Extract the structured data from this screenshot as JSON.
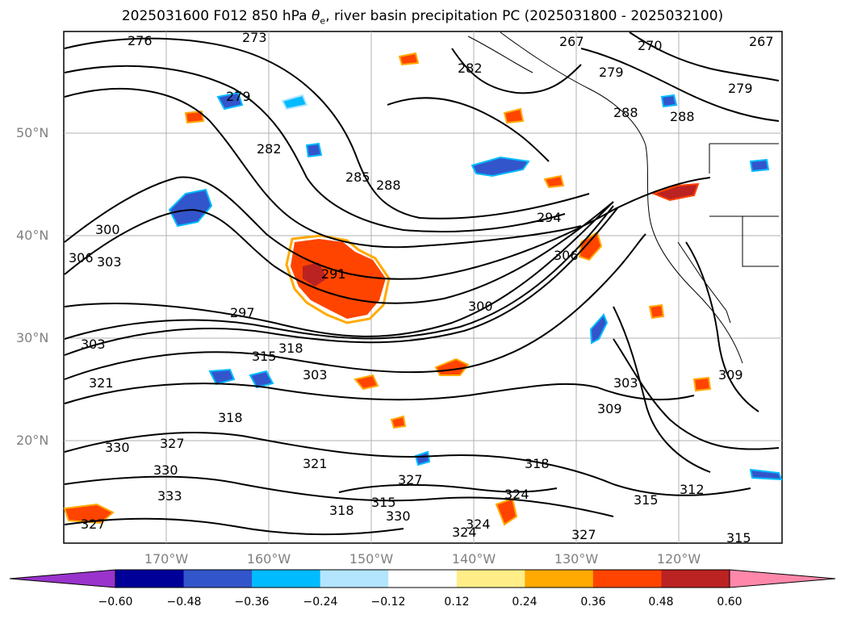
{
  "title": {
    "prefix": "2025031600 F012 850 hPa ",
    "theta": "θ",
    "theta_sub": "e",
    "suffix": ", river basin precipitation PC (2025031800 - 2025032100)"
  },
  "map": {
    "lat_labels": [
      "50°N",
      "40°N",
      "30°N",
      "20°N"
    ],
    "lon_labels": [
      "170°W",
      "160°W",
      "150°W",
      "140°W",
      "130°W",
      "120°W"
    ],
    "contour_field": "850 hPa theta-e",
    "contour_labels": [
      "276",
      "273",
      "267",
      "270",
      "267",
      "279",
      "279",
      "282",
      "285",
      "288",
      "288",
      "282",
      "279",
      "288",
      "294",
      "291",
      "300",
      "306",
      "303",
      "297",
      "300",
      "303",
      "306",
      "318",
      "315",
      "321",
      "303",
      "309",
      "309",
      "303",
      "318",
      "327",
      "330",
      "333",
      "330",
      "327",
      "321",
      "318",
      "315",
      "327",
      "324",
      "330",
      "324",
      "327",
      "315",
      "312",
      "318",
      "315",
      "324"
    ]
  },
  "colorbar": {
    "ticks": [
      "−0.60",
      "−0.48",
      "−0.36",
      "−0.24",
      "−0.12",
      "0.12",
      "0.24",
      "0.36",
      "0.48",
      "0.60"
    ],
    "colors": [
      "#9933cc",
      "#000099",
      "#3355cc",
      "#00bbff",
      "#b3e5ff",
      "#ffffff",
      "#ffee88",
      "#ffaa00",
      "#ff4400",
      "#bb2222",
      "#ff88aa"
    ],
    "extend": "both"
  }
}
